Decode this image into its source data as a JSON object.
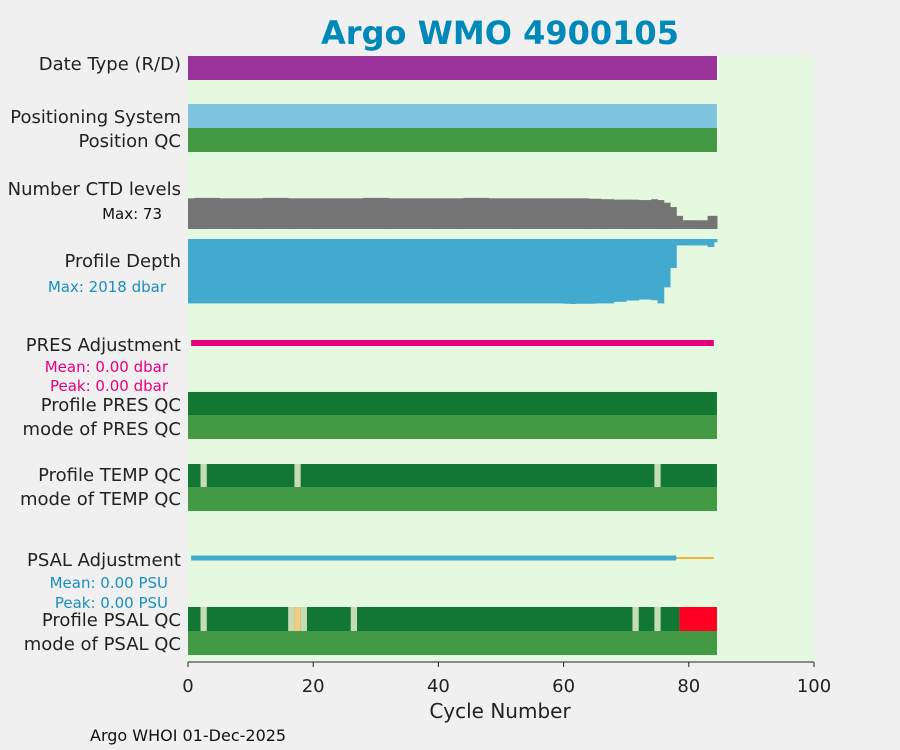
{
  "chart_data": {
    "type": "bar",
    "title": "Argo WMO 4900105",
    "xlabel": "Cycle Number",
    "xlim": [
      0,
      100
    ],
    "xticks": [
      0,
      20,
      40,
      60,
      80,
      100
    ],
    "last_cycle": 84.5,
    "grid": false,
    "rows": [
      {
        "key": "date_type",
        "label": "Date Type (R/D)",
        "color": "#993399",
        "segments": [
          [
            0,
            84.5
          ]
        ]
      },
      {
        "key": "pos_sys",
        "label": "Positioning System",
        "color": "#7fc4df",
        "segments": [
          [
            0,
            84.5
          ]
        ]
      },
      {
        "key": "pos_qc",
        "label": "Position QC",
        "color": "#449944",
        "segments": [
          [
            0,
            84.5
          ]
        ]
      },
      {
        "key": "pres_qc",
        "label": "Profile PRES QC",
        "color": "#117733",
        "segments": [
          [
            0,
            84.5
          ]
        ]
      },
      {
        "key": "pres_mode",
        "label": "mode of PRES QC",
        "color": "#449944",
        "segments": [
          [
            0,
            84.5
          ]
        ]
      },
      {
        "key": "temp_qc",
        "label": "Profile TEMP QC",
        "color": "#117733",
        "segments": [
          [
            0,
            84.5
          ]
        ],
        "marks": [
          {
            "x": 2.5,
            "color": "#c5dcb5"
          },
          {
            "x": 17.5,
            "color": "#c5dcb5"
          },
          {
            "x": 75,
            "color": "#c5dcb5"
          }
        ]
      },
      {
        "key": "temp_mode",
        "label": "mode of TEMP QC",
        "color": "#449944",
        "segments": [
          [
            0,
            84.5
          ]
        ]
      },
      {
        "key": "psal_qc",
        "label": "Profile PSAL QC",
        "color": "#117733",
        "segments": [
          [
            0,
            78.5
          ]
        ],
        "marks": [
          {
            "x": 2.5,
            "color": "#c5dcb5"
          },
          {
            "x": 16.5,
            "color": "#c5dcb5"
          },
          {
            "x": 17.5,
            "color": "#f2cc80"
          },
          {
            "x": 18.5,
            "color": "#c5dcb5"
          },
          {
            "x": 26.5,
            "color": "#c5dcb5"
          },
          {
            "x": 71.5,
            "color": "#c5dcb5"
          },
          {
            "x": 75,
            "color": "#c5dcb5"
          }
        ],
        "extra": [
          {
            "from": 78.5,
            "to": 84.5,
            "color": "#ff0022"
          }
        ]
      },
      {
        "key": "psal_mode",
        "label": "mode of PSAL QC",
        "color": "#449944",
        "segments": [
          [
            0,
            84.5
          ]
        ]
      }
    ],
    "ctd_levels": {
      "label": "Number CTD levels",
      "max_label": "Max: 73",
      "max": 73,
      "color": "#757575",
      "values": [
        [
          0,
          70
        ],
        [
          1,
          71
        ],
        [
          2,
          71
        ],
        [
          5,
          70
        ],
        [
          8,
          70
        ],
        [
          12,
          71
        ],
        [
          16,
          70
        ],
        [
          20,
          70
        ],
        [
          24,
          70
        ],
        [
          28,
          71
        ],
        [
          32,
          70
        ],
        [
          36,
          70
        ],
        [
          40,
          70
        ],
        [
          44,
          71
        ],
        [
          48,
          70
        ],
        [
          52,
          70
        ],
        [
          56,
          70
        ],
        [
          60,
          70
        ],
        [
          64,
          69
        ],
        [
          66,
          68
        ],
        [
          68,
          67
        ],
        [
          70,
          67
        ],
        [
          72,
          66
        ],
        [
          73,
          66
        ],
        [
          74,
          68
        ],
        [
          75,
          66
        ],
        [
          76,
          60
        ],
        [
          77,
          50
        ],
        [
          78,
          30
        ],
        [
          79,
          20
        ],
        [
          80,
          20
        ],
        [
          81,
          20
        ],
        [
          82,
          20
        ],
        [
          83,
          30
        ],
        [
          84,
          30
        ]
      ]
    },
    "profile_depth": {
      "label": "Profile Depth",
      "max_label": "Max: 2018 dbar",
      "max": 2018,
      "color": "#43aacf",
      "values": [
        [
          0,
          2000
        ],
        [
          10,
          2000
        ],
        [
          20,
          2000
        ],
        [
          30,
          2000
        ],
        [
          40,
          2000
        ],
        [
          50,
          2000
        ],
        [
          58,
          2000
        ],
        [
          60,
          2010
        ],
        [
          61,
          2018
        ],
        [
          62,
          2010
        ],
        [
          65,
          2000
        ],
        [
          67,
          2000
        ],
        [
          68,
          1950
        ],
        [
          70,
          1910
        ],
        [
          72,
          1880
        ],
        [
          74,
          1900
        ],
        [
          75,
          2000
        ],
        [
          76,
          1500
        ],
        [
          77,
          900
        ],
        [
          78,
          200
        ],
        [
          80,
          200
        ],
        [
          82,
          200
        ],
        [
          83,
          250
        ],
        [
          84,
          100
        ]
      ]
    },
    "pres_adjustment": {
      "label": "PRES Adjustment",
      "mean_label": "Mean: 0.00 dbar",
      "peak_label": "Peak: 0.00 dbar",
      "color": "#e6007e",
      "segments": [
        [
          0.5,
          84
        ]
      ]
    },
    "psal_adjustment": {
      "label": "PSAL Adjustment",
      "mean_label": "Mean: 0.00 PSU",
      "peak_label": "Peak: 0.00 PSU",
      "color": "#43aacf",
      "thin_color": "#f2b233",
      "segments": [
        [
          0.5,
          78
        ]
      ],
      "thin_segments": [
        [
          78,
          84
        ]
      ]
    }
  },
  "footer": "Argo WHOI 01-Dec-2025"
}
